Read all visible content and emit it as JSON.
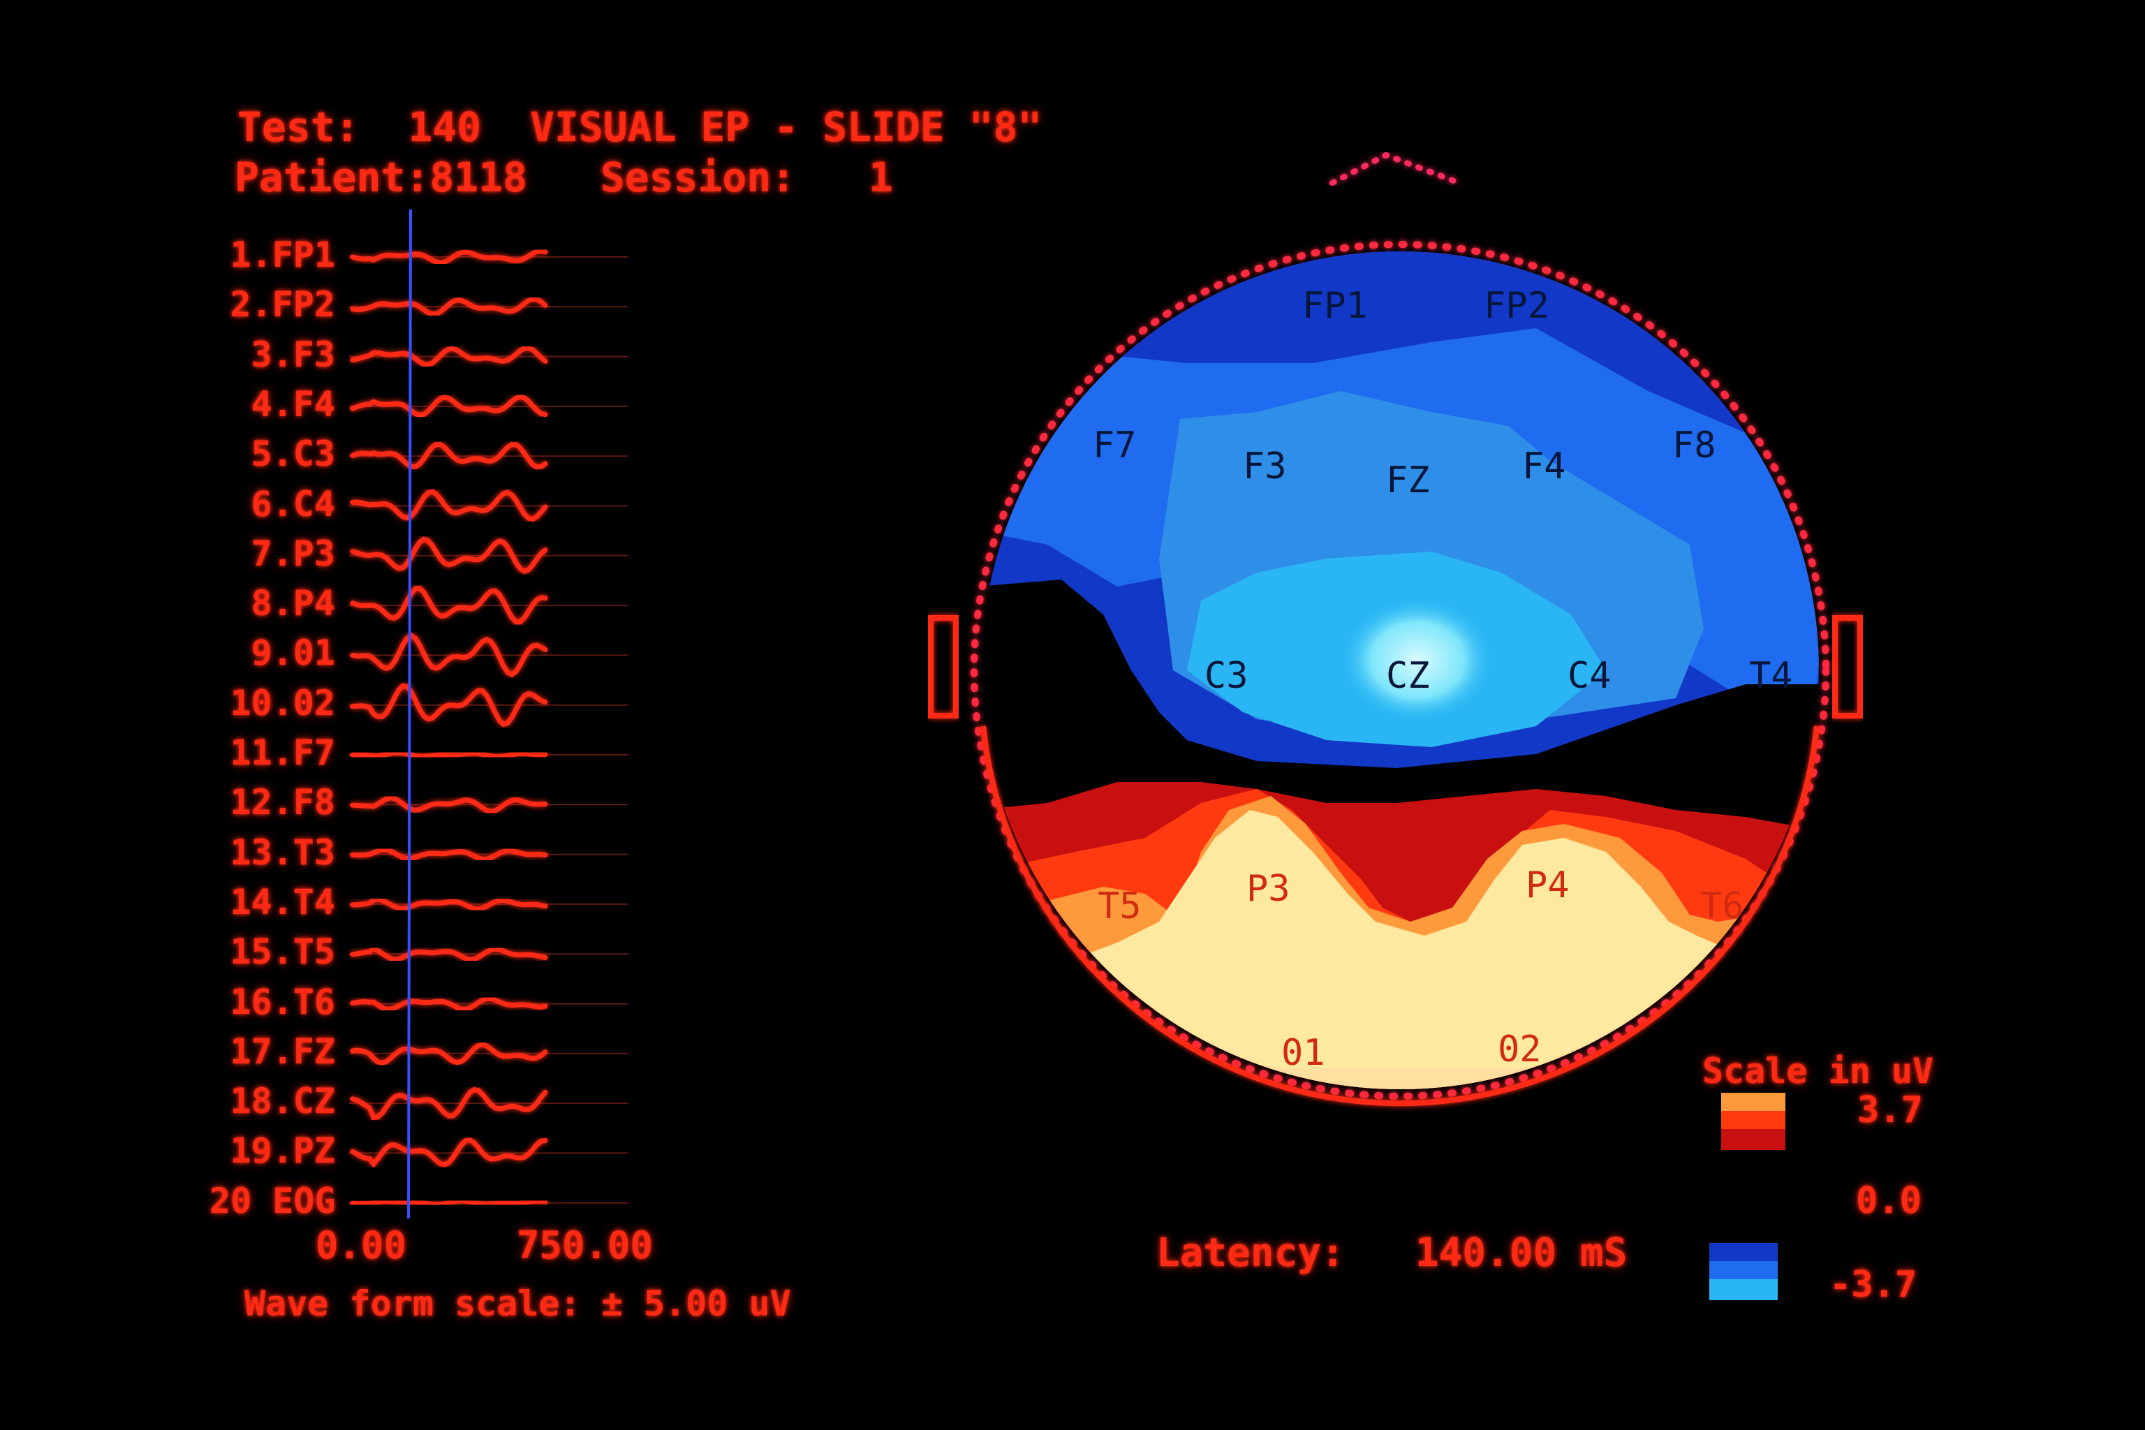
{
  "header": {
    "test_label": "Test:",
    "test_number": "140",
    "test_name": "VISUAL EP - SLIDE \"8\"",
    "patient_label": "Patient:",
    "patient_id": "8118",
    "session_label": "Session:",
    "session_number": "1"
  },
  "channels": [
    {
      "label": "1.FP1",
      "amp": 0.6
    },
    {
      "label": "2.FP2",
      "amp": 0.8
    },
    {
      "label": "3.F3",
      "amp": 0.9
    },
    {
      "label": "4.F4",
      "amp": 1.0
    },
    {
      "label": "5.C3",
      "amp": 1.3
    },
    {
      "label": "6.C4",
      "amp": 1.5
    },
    {
      "label": "7.P3",
      "amp": 1.7
    },
    {
      "label": "8.P4",
      "amp": 1.8
    },
    {
      "label": "9.01",
      "amp": 2.0
    },
    {
      "label": "10.02",
      "amp": 2.0
    },
    {
      "label": "11.F7",
      "amp": 0.2
    },
    {
      "label": "12.F8",
      "amp": 0.7
    },
    {
      "label": "13.T3",
      "amp": 0.5
    },
    {
      "label": "14.T4",
      "amp": 0.5
    },
    {
      "label": "15.T5",
      "amp": 0.6
    },
    {
      "label": "16.T6",
      "amp": 0.6
    },
    {
      "label": "17.FZ",
      "amp": 1.0
    },
    {
      "label": "18.CZ",
      "amp": 1.5
    },
    {
      "label": "19.PZ",
      "amp": 1.4
    },
    {
      "label": "20 EOG",
      "amp": 0.2
    }
  ],
  "time_axis": {
    "start": "0.00",
    "end": "750.00"
  },
  "waveform_scale": "Wave form scale: ± 5.00 uV",
  "latency": {
    "label": "Latency:",
    "value": "140.00 mS"
  },
  "scale": {
    "title": "Scale in uV",
    "max": "3.7",
    "zero": "0.0",
    "min": "-3.7"
  },
  "electrodes": [
    "FP1",
    "FP2",
    "F7",
    "F3",
    "FZ",
    "F4",
    "F8",
    "C3",
    "CZ",
    "C4",
    "T4",
    "T5",
    "P3",
    "P4",
    "T6",
    "01",
    "02"
  ],
  "colors": {
    "text": "#ff2a14",
    "neg_dark": "#1238c8",
    "neg_mid": "#1f6cf0",
    "neg_light": "#2ab6f4",
    "neg_peak": "#9ef0ff",
    "pos_dark": "#c81010",
    "pos_mid": "#ff3a10",
    "pos_light": "#ff9a3c",
    "pos_peak": "#ffe8a0"
  }
}
